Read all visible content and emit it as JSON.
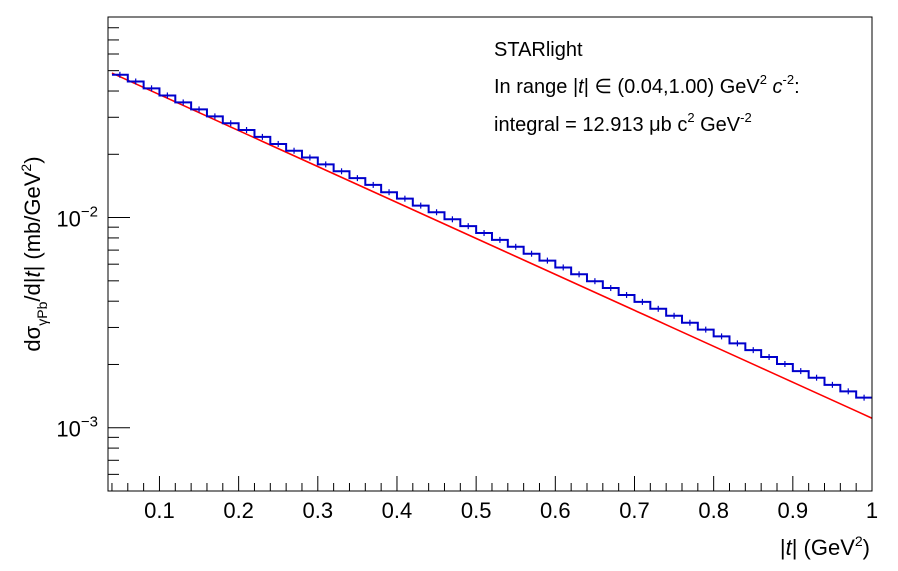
{
  "chart_data": {
    "type": "line",
    "xlabel": {
      "pre": "|",
      "t": "t",
      "post": "| (GeV",
      "sup": "2",
      "end": ")"
    },
    "ylabel": {
      "d1": "d",
      "sigma": "σ",
      "sub": "γPb",
      "mid": "/d|",
      "t": "t",
      "post": "| (mb/GeV",
      "sup": "2",
      "end": ")"
    },
    "xlim": [
      0.035,
      1.0
    ],
    "ylim": [
      0.0005,
      0.09
    ],
    "yscale": "log",
    "grid": false,
    "x_ticks": [
      {
        "value": 0.1,
        "label": "0.1"
      },
      {
        "value": 0.2,
        "label": "0.2"
      },
      {
        "value": 0.3,
        "label": "0.3"
      },
      {
        "value": 0.4,
        "label": "0.4"
      },
      {
        "value": 0.5,
        "label": "0.5"
      },
      {
        "value": 0.6,
        "label": "0.6"
      },
      {
        "value": 0.7,
        "label": "0.7"
      },
      {
        "value": 0.8,
        "label": "0.8"
      },
      {
        "value": 0.9,
        "label": "0.9"
      },
      {
        "value": 1.0,
        "label": "1"
      }
    ],
    "y_ticks": [
      {
        "value": 0.01,
        "base": "10",
        "exp": "−2"
      },
      {
        "value": 0.001,
        "base": "10",
        "exp": "−3"
      }
    ],
    "annotations": {
      "line1": "STARlight",
      "line2": {
        "a": "In range |",
        "t": "t",
        "b": "| ∈ (0.04,1.00) GeV",
        "sup1": "2",
        "c": " ",
        "ci": "c",
        "sup2": "-2",
        "d": ":"
      },
      "line3": {
        "a": "integral = 12.913 μb c",
        "sup1": "2",
        "b": " GeV",
        "sup2": "-2"
      }
    },
    "series": [
      {
        "type": "histogram",
        "color": "#0000cc",
        "bin_edges": [
          0.04,
          0.06,
          0.08,
          0.1,
          0.12,
          0.14,
          0.16,
          0.18,
          0.2,
          0.22,
          0.24,
          0.26,
          0.28,
          0.3,
          0.32,
          0.34,
          0.36,
          0.38,
          0.4,
          0.42,
          0.44,
          0.46,
          0.48,
          0.5,
          0.52,
          0.54,
          0.56,
          0.58,
          0.6,
          0.62,
          0.64,
          0.66,
          0.68,
          0.7,
          0.72,
          0.74,
          0.76,
          0.78,
          0.8,
          0.82,
          0.84,
          0.86,
          0.88,
          0.9,
          0.92,
          0.94,
          0.96,
          0.98,
          1.0
        ],
        "values": [
          0.0478,
          0.0444,
          0.0412,
          0.0381,
          0.0353,
          0.0327,
          0.0303,
          0.0281,
          0.0261,
          0.0242,
          0.0224,
          0.0208,
          0.0193,
          0.0179,
          0.0166,
          0.0154,
          0.0143,
          0.0132,
          0.0123,
          0.0114,
          0.0106,
          0.00981,
          0.0091,
          0.00844,
          0.00783,
          0.00726,
          0.00673,
          0.00624,
          0.00579,
          0.00537,
          0.00498,
          0.00462,
          0.00428,
          0.00397,
          0.00368,
          0.00341,
          0.00316,
          0.00293,
          0.00272,
          0.00252,
          0.00234,
          0.00217,
          0.00201,
          0.00186,
          0.00173,
          0.0016,
          0.00149,
          0.00139
        ]
      },
      {
        "type": "fit",
        "color": "#ff0000",
        "x": [
          0.04,
          1.0
        ],
        "y": [
          0.0487,
          0.00111
        ]
      }
    ]
  }
}
